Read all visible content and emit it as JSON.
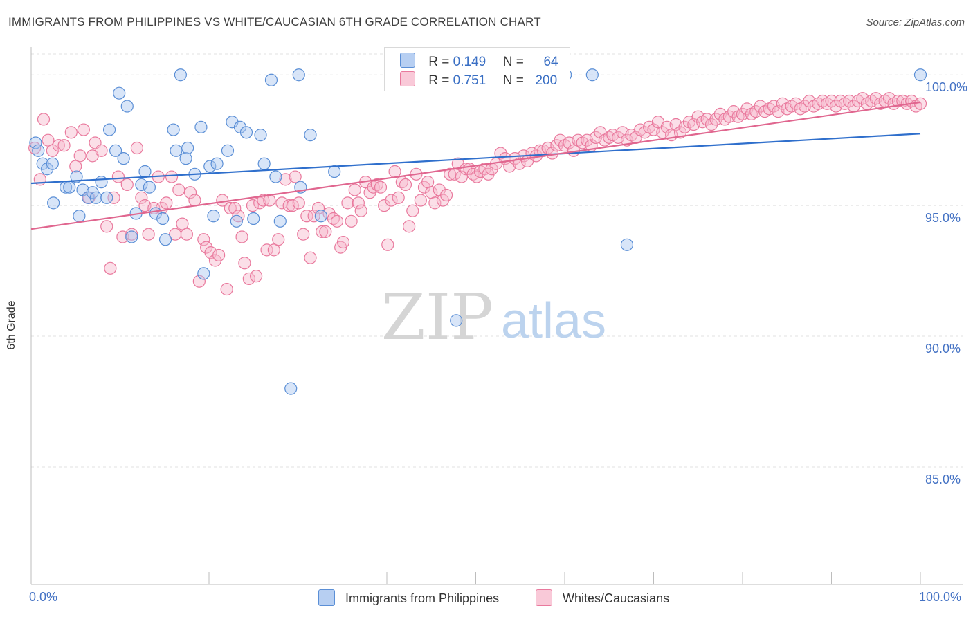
{
  "title": "IMMIGRANTS FROM PHILIPPINES VS WHITE/CAUCASIAN 6TH GRADE CORRELATION CHART",
  "source": "Source: ZipAtlas.com",
  "watermark": {
    "zip": "ZIP",
    "atlas": "atlas"
  },
  "legend": {
    "rows": [
      {
        "r_label": "R =",
        "r_value": "0.149",
        "n_label": "N =",
        "n_value": "64"
      },
      {
        "r_label": "R =",
        "r_value": "0.751",
        "n_label": "N =",
        "n_value": "200"
      }
    ]
  },
  "colors": {
    "blue_fill": "#a9c6ef",
    "blue_stroke": "#5b8fd6",
    "blue_line": "#2f6fcc",
    "pink_fill": "#f6b8cb",
    "pink_stroke": "#e9799d",
    "pink_line": "#e0668f",
    "tick_text": "#4472c4",
    "grid": "#e0e0e0"
  },
  "chart_data": {
    "type": "scatter",
    "title": "IMMIGRANTS FROM PHILIPPINES VS WHITE/CAUCASIAN 6TH GRADE CORRELATION CHART",
    "xlabel": "",
    "ylabel": "6th Grade",
    "xlim": [
      0,
      100
    ],
    "ylim": [
      80.5,
      100.8
    ],
    "x_tick_labels": [
      "0.0%",
      "100.0%"
    ],
    "y_ticks": [
      85,
      90,
      95,
      100
    ],
    "y_tick_labels": [
      "85.0%",
      "90.0%",
      "95.0%",
      "100.0%"
    ],
    "grid": true,
    "legend_position": "bottom-center",
    "series": [
      {
        "name": "Immigrants from Philippines",
        "color": "blue",
        "trend": {
          "x": [
            0,
            100
          ],
          "y": [
            95.85,
            97.75
          ]
        },
        "points": [
          [
            0.5,
            97.4
          ],
          [
            0.8,
            97.1
          ],
          [
            1.3,
            96.6
          ],
          [
            1.8,
            96.4
          ],
          [
            2.4,
            96.6
          ],
          [
            2.5,
            95.1
          ],
          [
            3.9,
            95.7
          ],
          [
            4.3,
            95.7
          ],
          [
            5.1,
            96.1
          ],
          [
            5.4,
            94.6
          ],
          [
            5.8,
            95.6
          ],
          [
            6.4,
            95.3
          ],
          [
            6.9,
            95.5
          ],
          [
            7.3,
            95.3
          ],
          [
            7.9,
            95.9
          ],
          [
            8.5,
            95.3
          ],
          [
            8.8,
            97.9
          ],
          [
            9.5,
            97.1
          ],
          [
            9.9,
            99.3
          ],
          [
            10.4,
            96.8
          ],
          [
            10.8,
            98.8
          ],
          [
            11.3,
            93.8
          ],
          [
            11.8,
            94.7
          ],
          [
            12.4,
            95.8
          ],
          [
            12.8,
            96.3
          ],
          [
            13.3,
            95.7
          ],
          [
            14.0,
            94.7
          ],
          [
            14.8,
            94.5
          ],
          [
            15.1,
            93.7
          ],
          [
            16.0,
            97.9
          ],
          [
            16.3,
            97.1
          ],
          [
            16.8,
            100.0
          ],
          [
            17.4,
            96.8
          ],
          [
            17.6,
            97.2
          ],
          [
            18.4,
            96.2
          ],
          [
            19.1,
            98.0
          ],
          [
            19.4,
            92.4
          ],
          [
            20.1,
            96.5
          ],
          [
            20.5,
            94.6
          ],
          [
            20.9,
            96.6
          ],
          [
            22.1,
            97.1
          ],
          [
            22.6,
            98.2
          ],
          [
            23.1,
            94.4
          ],
          [
            23.5,
            98.0
          ],
          [
            24.2,
            97.8
          ],
          [
            25.0,
            94.5
          ],
          [
            25.8,
            97.7
          ],
          [
            26.2,
            96.6
          ],
          [
            27.0,
            99.8
          ],
          [
            27.5,
            96.1
          ],
          [
            28.0,
            94.4
          ],
          [
            29.2,
            88.0
          ],
          [
            30.1,
            100.0
          ],
          [
            30.3,
            95.7
          ],
          [
            31.4,
            97.7
          ],
          [
            32.6,
            94.6
          ],
          [
            34.1,
            96.3
          ],
          [
            47.8,
            90.6
          ],
          [
            60.1,
            100.0
          ],
          [
            63.1,
            100.0
          ],
          [
            67.0,
            93.5
          ],
          [
            100.0,
            100.0
          ]
        ]
      },
      {
        "name": "Whites/Caucasians",
        "color": "pink",
        "trend": {
          "x": [
            0,
            100
          ],
          "y": [
            94.1,
            98.95
          ]
        },
        "points": [
          [
            0.4,
            97.2
          ],
          [
            1.0,
            96.0
          ],
          [
            1.4,
            98.3
          ],
          [
            1.9,
            97.5
          ],
          [
            2.4,
            97.1
          ],
          [
            3.1,
            97.3
          ],
          [
            3.7,
            97.3
          ],
          [
            4.5,
            97.8
          ],
          [
            5.0,
            96.5
          ],
          [
            5.5,
            96.9
          ],
          [
            5.9,
            97.9
          ],
          [
            6.5,
            95.3
          ],
          [
            6.9,
            96.9
          ],
          [
            7.2,
            97.4
          ],
          [
            7.9,
            97.1
          ],
          [
            8.5,
            94.2
          ],
          [
            8.9,
            92.6
          ],
          [
            9.3,
            95.3
          ],
          [
            9.8,
            96.1
          ],
          [
            10.3,
            93.8
          ],
          [
            10.8,
            95.8
          ],
          [
            11.3,
            93.9
          ],
          [
            11.9,
            97.2
          ],
          [
            12.4,
            95.3
          ],
          [
            12.8,
            95.0
          ],
          [
            13.2,
            93.9
          ],
          [
            13.8,
            94.9
          ],
          [
            14.3,
            96.1
          ],
          [
            14.7,
            94.9
          ],
          [
            15.2,
            95.1
          ],
          [
            15.8,
            96.1
          ],
          [
            16.2,
            93.9
          ],
          [
            16.6,
            95.6
          ],
          [
            17.0,
            94.3
          ],
          [
            17.5,
            93.9
          ],
          [
            17.9,
            95.5
          ],
          [
            18.4,
            95.2
          ],
          [
            18.9,
            92.1
          ],
          [
            19.4,
            93.7
          ],
          [
            19.7,
            93.4
          ],
          [
            20.2,
            93.2
          ],
          [
            20.7,
            92.9
          ],
          [
            21.1,
            93.1
          ],
          [
            21.5,
            95.2
          ],
          [
            22.0,
            91.8
          ],
          [
            22.4,
            94.9
          ],
          [
            22.9,
            94.9
          ],
          [
            23.3,
            94.6
          ],
          [
            23.7,
            93.8
          ],
          [
            24.0,
            92.8
          ],
          [
            24.5,
            92.2
          ],
          [
            24.9,
            95.0
          ],
          [
            25.3,
            92.3
          ],
          [
            25.7,
            95.1
          ],
          [
            26.1,
            95.2
          ],
          [
            26.5,
            93.3
          ],
          [
            26.8,
            95.2
          ],
          [
            27.3,
            93.3
          ],
          [
            27.8,
            93.7
          ],
          [
            28.2,
            95.1
          ],
          [
            28.6,
            96.0
          ],
          [
            29.0,
            95.0
          ],
          [
            29.4,
            95.0
          ],
          [
            29.7,
            96.1
          ],
          [
            30.1,
            95.1
          ],
          [
            30.6,
            93.9
          ],
          [
            31.0,
            94.6
          ],
          [
            31.4,
            93.0
          ],
          [
            31.8,
            94.6
          ],
          [
            32.3,
            94.9
          ],
          [
            32.7,
            94.0
          ],
          [
            33.1,
            94.0
          ],
          [
            33.5,
            94.7
          ],
          [
            34.0,
            94.5
          ],
          [
            34.4,
            94.4
          ],
          [
            34.8,
            93.4
          ],
          [
            35.1,
            93.6
          ],
          [
            35.6,
            95.1
          ],
          [
            36.0,
            94.4
          ],
          [
            36.4,
            95.6
          ],
          [
            36.8,
            95.1
          ],
          [
            37.1,
            94.8
          ],
          [
            37.6,
            95.9
          ],
          [
            38.1,
            95.5
          ],
          [
            38.5,
            95.7
          ],
          [
            38.9,
            95.8
          ],
          [
            39.3,
            95.7
          ],
          [
            39.7,
            95.0
          ],
          [
            40.1,
            93.5
          ],
          [
            40.5,
            95.2
          ],
          [
            40.9,
            96.3
          ],
          [
            41.3,
            95.3
          ],
          [
            41.7,
            95.9
          ],
          [
            42.1,
            95.8
          ],
          [
            42.5,
            94.2
          ],
          [
            42.9,
            94.8
          ],
          [
            43.3,
            96.2
          ],
          [
            43.8,
            95.2
          ],
          [
            44.2,
            95.7
          ],
          [
            44.6,
            95.9
          ],
          [
            45.0,
            95.5
          ],
          [
            45.4,
            95.1
          ],
          [
            45.9,
            95.6
          ],
          [
            46.3,
            95.2
          ],
          [
            46.7,
            95.4
          ],
          [
            47.1,
            96.2
          ],
          [
            47.6,
            96.2
          ],
          [
            48.0,
            96.6
          ],
          [
            48.4,
            96.1
          ],
          [
            48.9,
            96.4
          ],
          [
            49.3,
            96.4
          ],
          [
            49.7,
            96.2
          ],
          [
            50.1,
            96.1
          ],
          [
            50.5,
            96.3
          ],
          [
            51.0,
            96.4
          ],
          [
            51.4,
            96.2
          ],
          [
            51.8,
            96.4
          ],
          [
            52.3,
            96.6
          ],
          [
            52.8,
            97.0
          ],
          [
            53.3,
            96.8
          ],
          [
            53.8,
            96.5
          ],
          [
            54.4,
            96.8
          ],
          [
            54.9,
            96.6
          ],
          [
            55.4,
            96.9
          ],
          [
            55.8,
            96.7
          ],
          [
            56.3,
            97.0
          ],
          [
            56.8,
            96.9
          ],
          [
            57.2,
            97.1
          ],
          [
            57.6,
            97.1
          ],
          [
            58.1,
            97.2
          ],
          [
            58.6,
            97.0
          ],
          [
            59.1,
            97.3
          ],
          [
            59.5,
            97.5
          ],
          [
            60.0,
            97.3
          ],
          [
            60.5,
            97.4
          ],
          [
            61.0,
            97.1
          ],
          [
            61.5,
            97.5
          ],
          [
            62.0,
            97.4
          ],
          [
            62.5,
            97.5
          ],
          [
            63.0,
            97.3
          ],
          [
            63.5,
            97.6
          ],
          [
            64.0,
            97.8
          ],
          [
            64.5,
            97.5
          ],
          [
            65.0,
            97.6
          ],
          [
            65.4,
            97.7
          ],
          [
            66.0,
            97.6
          ],
          [
            66.5,
            97.8
          ],
          [
            67.0,
            97.5
          ],
          [
            67.5,
            97.7
          ],
          [
            68.0,
            97.6
          ],
          [
            68.5,
            97.9
          ],
          [
            69.0,
            97.8
          ],
          [
            69.5,
            98.0
          ],
          [
            70.0,
            97.9
          ],
          [
            70.5,
            98.2
          ],
          [
            71.0,
            97.8
          ],
          [
            71.5,
            98.0
          ],
          [
            72.0,
            97.7
          ],
          [
            72.5,
            98.1
          ],
          [
            73.0,
            97.8
          ],
          [
            73.5,
            98.0
          ],
          [
            74.0,
            98.2
          ],
          [
            74.5,
            98.1
          ],
          [
            75.0,
            98.4
          ],
          [
            75.5,
            98.2
          ],
          [
            76.0,
            98.3
          ],
          [
            76.5,
            98.1
          ],
          [
            77.0,
            98.3
          ],
          [
            77.5,
            98.5
          ],
          [
            78.0,
            98.3
          ],
          [
            78.5,
            98.4
          ],
          [
            79.0,
            98.6
          ],
          [
            79.5,
            98.4
          ],
          [
            80.0,
            98.5
          ],
          [
            80.5,
            98.7
          ],
          [
            81.0,
            98.5
          ],
          [
            81.5,
            98.6
          ],
          [
            82.0,
            98.8
          ],
          [
            82.5,
            98.6
          ],
          [
            83.0,
            98.7
          ],
          [
            83.5,
            98.8
          ],
          [
            84.0,
            98.6
          ],
          [
            84.5,
            98.9
          ],
          [
            85.0,
            98.7
          ],
          [
            85.5,
            98.8
          ],
          [
            86.0,
            98.9
          ],
          [
            86.5,
            98.7
          ],
          [
            87.0,
            98.8
          ],
          [
            87.5,
            99.0
          ],
          [
            88.0,
            98.8
          ],
          [
            88.5,
            98.9
          ],
          [
            89.0,
            99.0
          ],
          [
            89.5,
            98.9
          ],
          [
            90.0,
            99.0
          ],
          [
            90.5,
            98.8
          ],
          [
            91.0,
            99.0
          ],
          [
            91.5,
            98.9
          ],
          [
            92.0,
            99.0
          ],
          [
            92.5,
            98.8
          ],
          [
            93.0,
            99.0
          ],
          [
            93.5,
            99.1
          ],
          [
            94.0,
            98.9
          ],
          [
            94.5,
            99.0
          ],
          [
            95.0,
            99.1
          ],
          [
            95.5,
            98.9
          ],
          [
            96.0,
            99.0
          ],
          [
            96.5,
            99.1
          ],
          [
            97.0,
            98.9
          ],
          [
            97.5,
            99.0
          ],
          [
            98.0,
            99.0
          ],
          [
            98.5,
            98.9
          ],
          [
            99.0,
            99.0
          ],
          [
            99.5,
            98.8
          ],
          [
            100.0,
            98.9
          ]
        ]
      }
    ]
  }
}
